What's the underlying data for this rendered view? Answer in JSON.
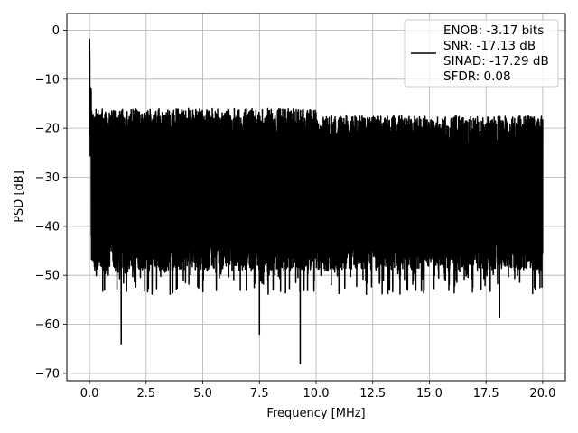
{
  "chart_data": {
    "type": "line",
    "title": "",
    "xlabel": "Frequency [MHz]",
    "ylabel": "PSD [dB]",
    "xlim": [
      -1.0,
      21.0
    ],
    "ylim": [
      -71.5,
      3.4
    ],
    "xticks": [
      0.0,
      2.5,
      5.0,
      7.5,
      10.0,
      12.5,
      15.0,
      17.5,
      20.0
    ],
    "xtick_labels": [
      "0.0",
      "2.5",
      "5.0",
      "7.5",
      "10.0",
      "12.5",
      "15.0",
      "17.5",
      "20.0"
    ],
    "yticks": [
      0,
      -10,
      -20,
      -30,
      -40,
      -50,
      -60,
      -70
    ],
    "ytick_labels": [
      "0",
      "−10",
      "−20",
      "−30",
      "−40",
      "−50",
      "−60",
      "−70"
    ],
    "grid": true,
    "legend_position": "top-right",
    "series": [
      {
        "name": "",
        "color": "#000000",
        "x_range": [
          0.0,
          20.0
        ],
        "sampled_points": [
          [
            0.0,
            0
          ],
          [
            0.02,
            -10
          ],
          [
            0.05,
            -25
          ],
          [
            0.1,
            -15
          ],
          [
            0.2,
            -35
          ],
          [
            1.4,
            -64
          ],
          [
            7.5,
            -62
          ],
          [
            9.3,
            -68
          ],
          [
            18.1,
            -58.5
          ],
          [
            5.0,
            -17
          ],
          [
            10.0,
            -18
          ],
          [
            15.0,
            -20
          ],
          [
            20.0,
            -22
          ]
        ],
        "noise_floor_top": -19,
        "noise_floor_bottom": -45
      }
    ],
    "legend_entries": [
      "ENOB: -3.17 bits",
      "SNR: -17.13 dB",
      "SINAD: -17.29 dB",
      "SFDR: 0.08"
    ]
  }
}
